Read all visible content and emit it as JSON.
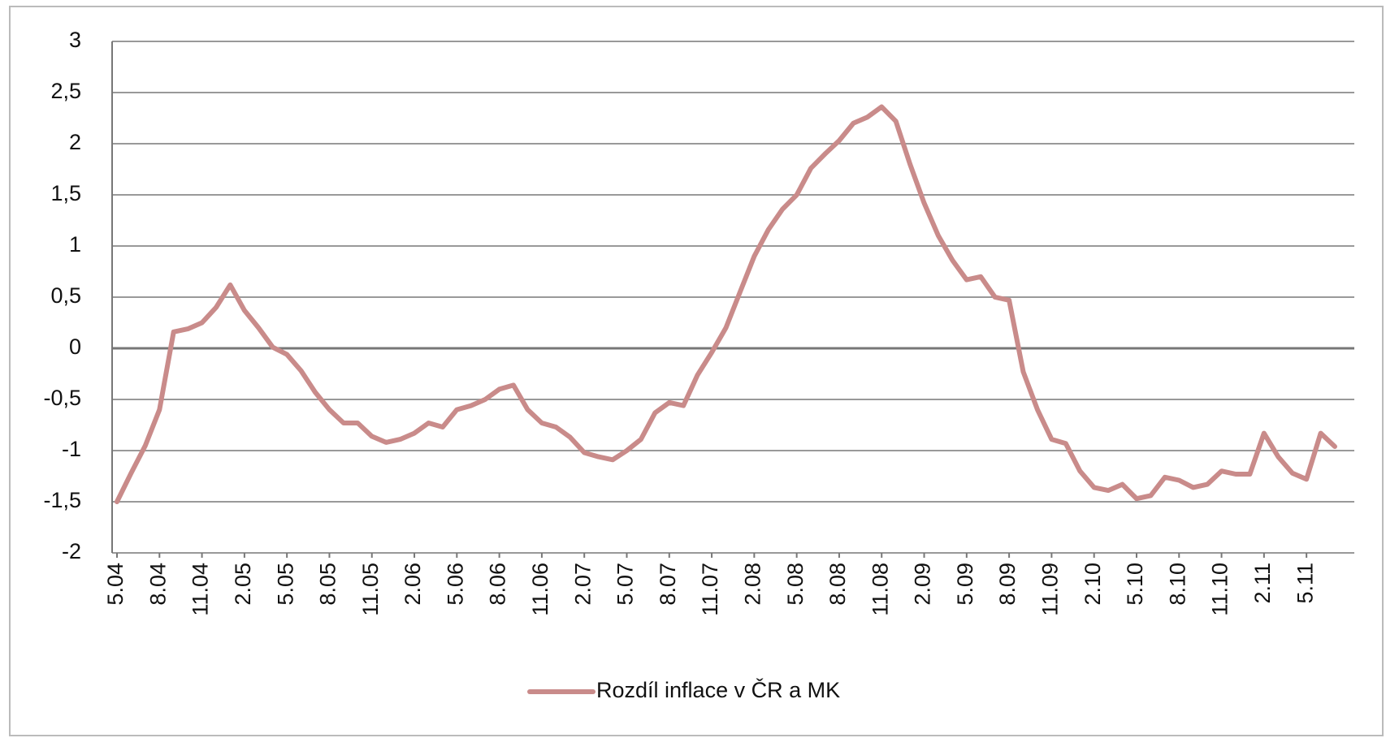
{
  "chart_data": {
    "type": "line",
    "categories": [
      "5.04",
      null,
      null,
      "8.04",
      null,
      null,
      "11.04",
      null,
      null,
      "2.05",
      null,
      null,
      "5.05",
      null,
      null,
      "8.05",
      null,
      null,
      "11.05",
      null,
      null,
      "2.06",
      null,
      null,
      "5.06",
      null,
      null,
      "8.06",
      null,
      null,
      "11.06",
      null,
      null,
      "2.07",
      null,
      null,
      "5.07",
      null,
      null,
      "8.07",
      null,
      null,
      "11.07",
      null,
      null,
      "2.08",
      null,
      null,
      "5.08",
      null,
      null,
      "8.08",
      null,
      null,
      "11.08",
      null,
      null,
      "2.09",
      null,
      null,
      "5.09",
      null,
      null,
      "8.09",
      null,
      null,
      "11.09",
      null,
      null,
      "2.10",
      null,
      null,
      "5.10",
      null,
      null,
      "8.10",
      null,
      null,
      "11.10",
      null,
      null,
      "2.11",
      null,
      null,
      "5.11",
      null,
      null
    ],
    "series": [
      {
        "name": "Rozdíl inflace v ČR a MK",
        "color": "#c98b8a",
        "values": [
          -1.5,
          -1.22,
          -0.95,
          -0.6,
          0.16,
          0.19,
          0.25,
          0.4,
          0.62,
          0.37,
          0.2,
          0.01,
          -0.06,
          -0.22,
          -0.43,
          -0.6,
          -0.73,
          -0.73,
          -0.86,
          -0.92,
          -0.89,
          -0.83,
          -0.73,
          -0.77,
          -0.6,
          -0.56,
          -0.5,
          -0.4,
          -0.36,
          -0.6,
          -0.73,
          -0.77,
          -0.87,
          -1.02,
          -1.06,
          -1.09,
          -1.0,
          -0.89,
          -0.63,
          -0.53,
          -0.56,
          -0.26,
          -0.04,
          0.2,
          0.55,
          0.9,
          1.16,
          1.36,
          1.5,
          1.76,
          1.9,
          2.03,
          2.2,
          2.26,
          2.36,
          2.22,
          1.8,
          1.42,
          1.1,
          0.86,
          0.67,
          0.7,
          0.5,
          0.47,
          -0.23,
          -0.6,
          -0.89,
          -0.93,
          -1.2,
          -1.36,
          -1.39,
          -1.33,
          -1.47,
          -1.44,
          -1.26,
          -1.29,
          -1.36,
          -1.33,
          -1.2,
          -1.23,
          -1.23,
          -0.83,
          -1.06,
          -1.22,
          -1.28,
          -0.83,
          -0.96
        ]
      }
    ],
    "ylim": [
      -2,
      3
    ],
    "yticks": [
      -2,
      {
        "value": -1.5,
        "label": "-1,5"
      },
      -1,
      {
        "value": -0.5,
        "label": "-0,5"
      },
      0,
      {
        "value": 0.5,
        "label": "0,5"
      },
      1,
      {
        "value": 1.5,
        "label": "1,5"
      },
      2,
      {
        "value": 2.5,
        "label": "2,5"
      },
      3
    ],
    "grid": true,
    "legend": "bottom"
  }
}
